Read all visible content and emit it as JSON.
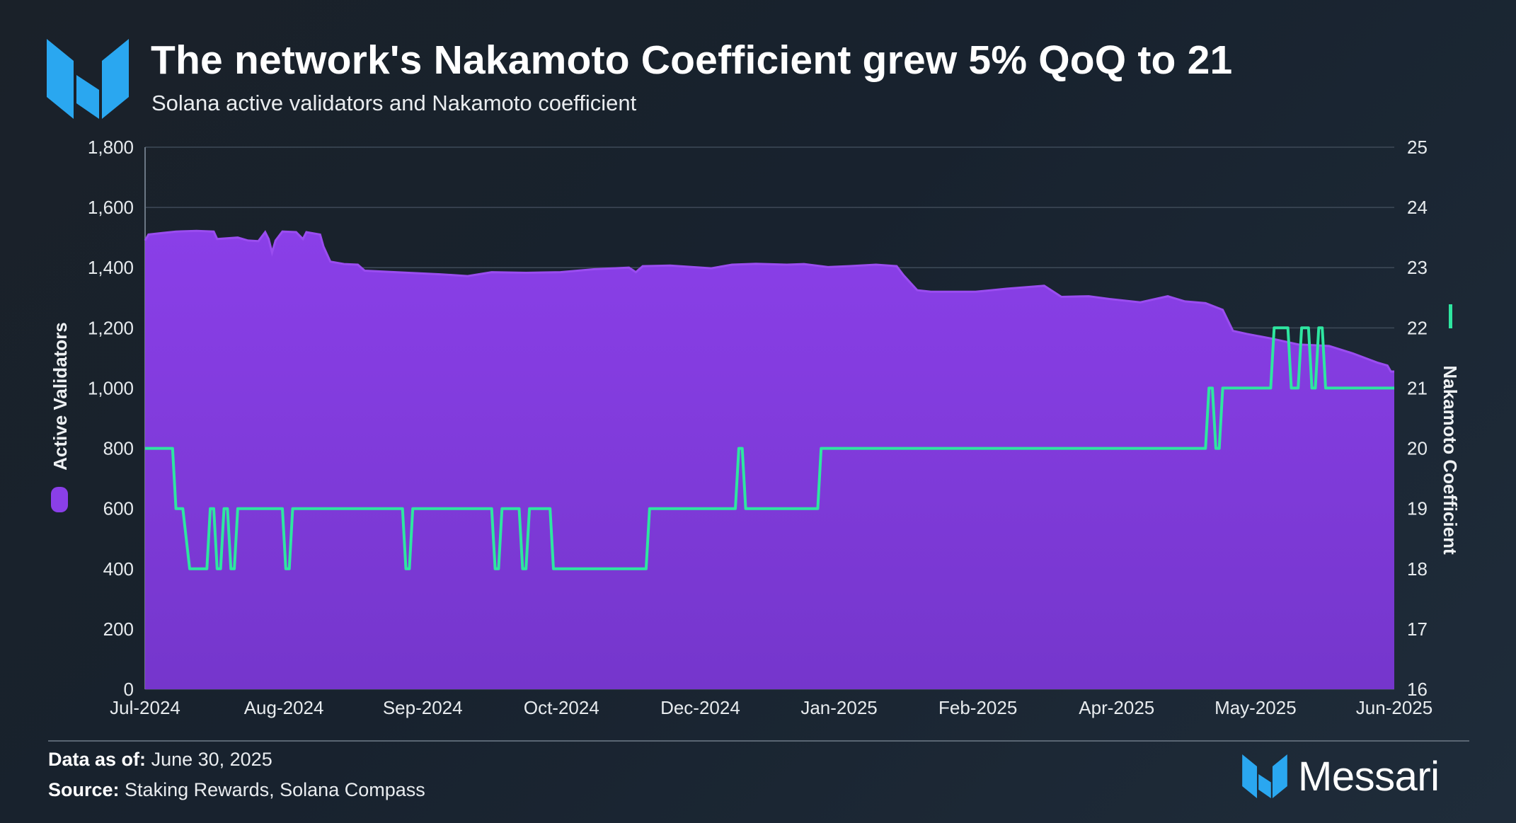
{
  "header": {
    "title": "The network's Nakamoto Coefficient grew 5% QoQ to 21",
    "subtitle": "Solana active validators and Nakamoto coefficient",
    "logo_icon": "messari-logo-icon"
  },
  "footer": {
    "data_as_of_label": "Data as of:",
    "data_as_of_value": "June 30, 2025",
    "source_label": "Source:",
    "source_value": "Staking Rewards, Solana Compass",
    "brand_name": "Messari"
  },
  "colors": {
    "validators_fill": "#7f3ad6",
    "validators_top": "#9a4df0",
    "nakamoto_line": "#2ee6a0",
    "grid": "#3e4a58"
  },
  "chart_data": {
    "type": "area",
    "title": "The network's Nakamoto Coefficient grew 5% QoQ to 21",
    "subtitle": "Solana active validators and Nakamoto coefficient",
    "x_ticks": [
      "Jul-2024",
      "Aug-2024",
      "Sep-2024",
      "Oct-2024",
      "Dec-2024",
      "Jan-2025",
      "Feb-2025",
      "Apr-2025",
      "May-2025",
      "Jun-2025"
    ],
    "y_left": {
      "label": "Active Validators",
      "min": 0,
      "max": 1800,
      "ticks": [
        "0",
        "200",
        "400",
        "600",
        "800",
        "1,000",
        "1,200",
        "1,400",
        "1,600",
        "1,800"
      ]
    },
    "y_right": {
      "label": "Nakamoto Coefficient",
      "min": 16,
      "max": 25,
      "ticks": [
        "16",
        "17",
        "18",
        "19",
        "20",
        "21",
        "22",
        "23",
        "24",
        "25"
      ]
    },
    "grid": true,
    "series": [
      {
        "name": "Active Validators",
        "type": "area",
        "axis": "left",
        "points": [
          [
            "2024-07-01",
            1490
          ],
          [
            "2024-07-02",
            1510
          ],
          [
            "2024-07-06",
            1515
          ],
          [
            "2024-07-10",
            1520
          ],
          [
            "2024-07-16",
            1522
          ],
          [
            "2024-07-21",
            1520
          ],
          [
            "2024-07-22",
            1495
          ],
          [
            "2024-07-28",
            1500
          ],
          [
            "2024-07-31",
            1490
          ],
          [
            "2024-08-03",
            1488
          ],
          [
            "2024-08-05",
            1518
          ],
          [
            "2024-08-06",
            1495
          ],
          [
            "2024-08-07",
            1450
          ],
          [
            "2024-08-08",
            1490
          ],
          [
            "2024-08-10",
            1520
          ],
          [
            "2024-08-14",
            1518
          ],
          [
            "2024-08-16",
            1495
          ],
          [
            "2024-08-17",
            1518
          ],
          [
            "2024-08-21",
            1510
          ],
          [
            "2024-08-22",
            1470
          ],
          [
            "2024-08-24",
            1420
          ],
          [
            "2024-08-28",
            1412
          ],
          [
            "2024-09-01",
            1410
          ],
          [
            "2024-09-03",
            1390
          ],
          [
            "2024-09-12",
            1385
          ],
          [
            "2024-09-25",
            1378
          ],
          [
            "2024-10-03",
            1372
          ],
          [
            "2024-10-10",
            1385
          ],
          [
            "2024-10-20",
            1383
          ],
          [
            "2024-10-30",
            1385
          ],
          [
            "2024-11-09",
            1395
          ],
          [
            "2024-11-19",
            1400
          ],
          [
            "2024-11-21",
            1385
          ],
          [
            "2024-11-23",
            1405
          ],
          [
            "2024-12-01",
            1407
          ],
          [
            "2024-12-13",
            1398
          ],
          [
            "2024-12-19",
            1410
          ],
          [
            "2024-12-26",
            1413
          ],
          [
            "2025-01-04",
            1410
          ],
          [
            "2025-01-09",
            1412
          ],
          [
            "2025-01-16",
            1402
          ],
          [
            "2025-01-22",
            1405
          ],
          [
            "2025-01-30",
            1410
          ],
          [
            "2025-02-05",
            1405
          ],
          [
            "2025-02-07",
            1375
          ],
          [
            "2025-02-11",
            1325
          ],
          [
            "2025-02-15",
            1320
          ],
          [
            "2025-02-28",
            1320
          ],
          [
            "2025-03-09",
            1330
          ],
          [
            "2025-03-20",
            1340
          ],
          [
            "2025-03-25",
            1303
          ],
          [
            "2025-04-02",
            1305
          ],
          [
            "2025-04-08",
            1296
          ],
          [
            "2025-04-17",
            1285
          ],
          [
            "2025-04-25",
            1305
          ],
          [
            "2025-04-30",
            1288
          ],
          [
            "2025-05-06",
            1282
          ],
          [
            "2025-05-11",
            1260
          ],
          [
            "2025-05-14",
            1190
          ],
          [
            "2025-05-18",
            1180
          ],
          [
            "2025-05-25",
            1165
          ],
          [
            "2025-06-02",
            1145
          ],
          [
            "2025-06-11",
            1140
          ],
          [
            "2025-06-18",
            1115
          ],
          [
            "2025-06-25",
            1085
          ],
          [
            "2025-06-28",
            1075
          ],
          [
            "2025-06-29",
            1055
          ],
          [
            "2025-06-30",
            1055
          ]
        ]
      },
      {
        "name": "Nakamoto Coefficient",
        "type": "line",
        "axis": "right",
        "points": [
          [
            "2024-07-01",
            20
          ],
          [
            "2024-07-09",
            20
          ],
          [
            "2024-07-10",
            19
          ],
          [
            "2024-07-12",
            19
          ],
          [
            "2024-07-14",
            18
          ],
          [
            "2024-07-19",
            18
          ],
          [
            "2024-07-20",
            19
          ],
          [
            "2024-07-21",
            19
          ],
          [
            "2024-07-22",
            18
          ],
          [
            "2024-07-23",
            18
          ],
          [
            "2024-07-24",
            19
          ],
          [
            "2024-07-25",
            19
          ],
          [
            "2024-07-26",
            18
          ],
          [
            "2024-07-27",
            18
          ],
          [
            "2024-07-28",
            19
          ],
          [
            "2024-08-10",
            19
          ],
          [
            "2024-08-11",
            18
          ],
          [
            "2024-08-12",
            18
          ],
          [
            "2024-08-13",
            19
          ],
          [
            "2024-09-14",
            19
          ],
          [
            "2024-09-15",
            18
          ],
          [
            "2024-09-16",
            18
          ],
          [
            "2024-09-17",
            19
          ],
          [
            "2024-10-10",
            19
          ],
          [
            "2024-10-11",
            18
          ],
          [
            "2024-10-12",
            18
          ],
          [
            "2024-10-13",
            19
          ],
          [
            "2024-10-18",
            19
          ],
          [
            "2024-10-19",
            18
          ],
          [
            "2024-10-20",
            18
          ],
          [
            "2024-10-21",
            19
          ],
          [
            "2024-10-27",
            19
          ],
          [
            "2024-10-28",
            18
          ],
          [
            "2024-11-24",
            18
          ],
          [
            "2024-11-25",
            19
          ],
          [
            "2024-12-20",
            19
          ],
          [
            "2024-12-21",
            20
          ],
          [
            "2024-12-22",
            20
          ],
          [
            "2024-12-23",
            19
          ],
          [
            "2025-01-13",
            19
          ],
          [
            "2025-01-14",
            20
          ],
          [
            "2025-03-08",
            20
          ],
          [
            "2025-03-09",
            20
          ],
          [
            "2025-05-06",
            20
          ],
          [
            "2025-05-07",
            21
          ],
          [
            "2025-05-08",
            21
          ],
          [
            "2025-05-09",
            20
          ],
          [
            "2025-05-10",
            20
          ],
          [
            "2025-05-11",
            21
          ],
          [
            "2025-05-25",
            21
          ],
          [
            "2025-05-26",
            22
          ],
          [
            "2025-05-30",
            22
          ],
          [
            "2025-05-31",
            21
          ],
          [
            "2025-06-02",
            21
          ],
          [
            "2025-06-03",
            22
          ],
          [
            "2025-06-05",
            22
          ],
          [
            "2025-06-06",
            21
          ],
          [
            "2025-06-07",
            21
          ],
          [
            "2025-06-08",
            22
          ],
          [
            "2025-06-09",
            22
          ],
          [
            "2025-06-10",
            21
          ],
          [
            "2025-06-30",
            21
          ]
        ]
      }
    ]
  }
}
